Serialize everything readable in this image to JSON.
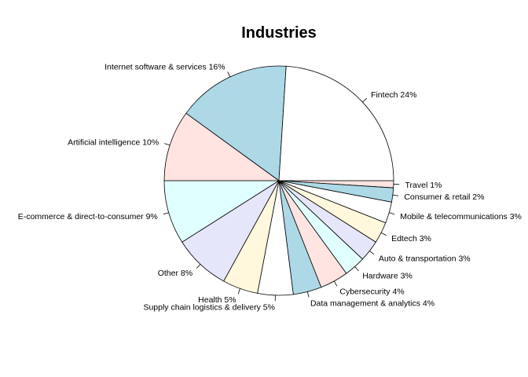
{
  "chart_data": {
    "type": "pie",
    "title": "Industries",
    "direction": "clockwise",
    "start": "3 o'clock",
    "slices": [
      {
        "label": "Travel 1%",
        "value": 1,
        "color": "#FFE4E1"
      },
      {
        "label": "Consumer & retail 2%",
        "value": 2,
        "color": "#ADD8E6"
      },
      {
        "label": "Mobile & telecommunications 3%",
        "value": 3,
        "color": "#FFFFFF"
      },
      {
        "label": "Edtech 3%",
        "value": 3,
        "color": "#FFF8DC"
      },
      {
        "label": "Auto & transportation 3%",
        "value": 3,
        "color": "#E6E6FA"
      },
      {
        "label": "Hardware 3%",
        "value": 3,
        "color": "#E0FFFF"
      },
      {
        "label": "Cybersecurity 4%",
        "value": 4,
        "color": "#FFE4E1"
      },
      {
        "label": "Data management & analytics 4%",
        "value": 4,
        "color": "#ADD8E6"
      },
      {
        "label": "Supply chain logistics & delivery 5%",
        "value": 5,
        "color": "#FFFFFF"
      },
      {
        "label": "Health 5%",
        "value": 5,
        "color": "#FFF8DC"
      },
      {
        "label": "Other 8%",
        "value": 8,
        "color": "#E6E6FA"
      },
      {
        "label": "E-commerce & direct-to-consumer 9%",
        "value": 9,
        "color": "#E0FFFF"
      },
      {
        "label": "Artificial intelligence 10%",
        "value": 10,
        "color": "#FFE4E1"
      },
      {
        "label": "Internet software & services 16%",
        "value": 16,
        "color": "#ADD8E6"
      },
      {
        "label": "Fintech 24%",
        "value": 24,
        "color": "#FFFFFF"
      }
    ]
  }
}
